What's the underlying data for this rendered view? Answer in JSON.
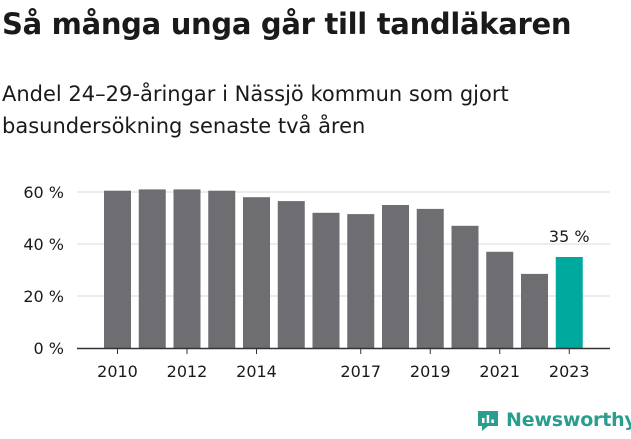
{
  "title": "Så många unga går till tandläkaren",
  "subtitle": "Andel 24–29-åringar i Nässjö kommun som gjort basundersökning senaste två åren",
  "logo": {
    "text": "Newsworthy",
    "icon": "chat-bar-chart-icon"
  },
  "colors": {
    "bar": "#6e6d72",
    "highlight": "#00a99d",
    "grid": "#d9d9d9",
    "axis": "#333333",
    "logo": "#2a9d8f"
  },
  "chart_data": {
    "type": "bar",
    "years": [
      2010,
      2011,
      2012,
      2013,
      2014,
      2015,
      2016,
      2017,
      2018,
      2019,
      2020,
      2021,
      2022,
      2023
    ],
    "values": [
      60.5,
      61,
      61,
      60.5,
      58,
      56.5,
      52,
      51.5,
      55,
      53.5,
      47,
      37,
      28.5,
      35
    ],
    "highlight_index": 13,
    "highlight_label": "35 %",
    "y_ticks": [
      0,
      20,
      40,
      60
    ],
    "y_tick_labels": [
      "0 %",
      "20 %",
      "40 %",
      "60 %"
    ],
    "x_ticks": [
      2010,
      2012,
      2014,
      2017,
      2019,
      2021,
      2023
    ],
    "x_tick_labels": [
      "2010",
      "2012",
      "2014",
      "2017",
      "2019",
      "2021",
      "2023"
    ],
    "ylim": [
      0,
      60
    ],
    "grid": true,
    "xlabel": "",
    "ylabel": ""
  }
}
